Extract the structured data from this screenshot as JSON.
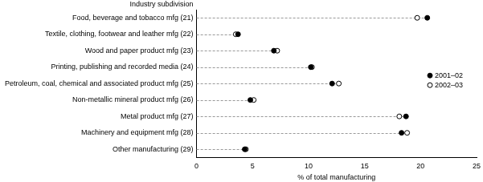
{
  "chart_data": {
    "type": "dot",
    "orientation": "horizontal",
    "x_label": "% of total manufacturing",
    "y_label": "Industry subdivision",
    "categories": [
      "Food, beverage and tobacco mfg (21)",
      "Textile, clothing, footwear and leather mfg (22)",
      "Wood and paper product mfg (23)",
      "Printing, publishing and recorded media (24)",
      "Petroleum, coal, chemical and associated product mfg (25)",
      "Non-metallic mineral product mfg (26)",
      "Metal product mfg (27)",
      "Machinery and equipment mfg (28)",
      "Other manufacturing (29)"
    ],
    "series": [
      {
        "name": "2001–02",
        "color": "#000000",
        "marker": "circle",
        "values": [
          20.6,
          3.7,
          6.9,
          10.2,
          12.1,
          4.8,
          18.7,
          18.3,
          4.3
        ]
      },
      {
        "name": "2002–03",
        "color": "#000000",
        "marker": "circle_open",
        "values": [
          19.7,
          3.5,
          7.2,
          10.3,
          12.7,
          5.1,
          18.1,
          18.8,
          4.4
        ]
      }
    ],
    "xlim": [
      0,
      25
    ],
    "xticks": [
      0,
      5,
      10,
      15,
      20,
      25
    ],
    "grid": false,
    "legend": "right"
  }
}
